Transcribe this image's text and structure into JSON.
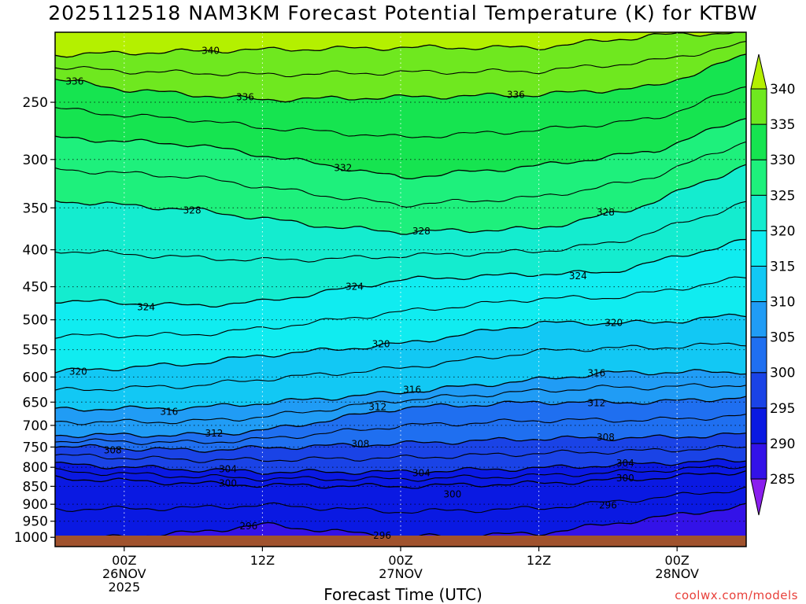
{
  "title": "2025112518 NAM3KM Forecast Potential Temperature (K) for KTBW",
  "x_axis_label": "Forecast Time (UTC)",
  "credit": "coolwx.com/models",
  "chart_data": {
    "type": "heatmap",
    "title": "2025112518 NAM3KM Forecast Potential Temperature (K) for KTBW",
    "xlabel": "Forecast Time (UTC)",
    "ylabel": "",
    "y_scale": "log-pressure (inverted)",
    "y_ticks": [
      250,
      300,
      350,
      400,
      450,
      500,
      550,
      600,
      650,
      700,
      750,
      800,
      850,
      900,
      950,
      1000
    ],
    "ylim": [
      1030,
      200
    ],
    "x_range_hours": [
      -6,
      54
    ],
    "x_ticks": [
      {
        "hour": 0,
        "lines": [
          "00Z",
          "26NOV",
          "2025"
        ]
      },
      {
        "hour": 12,
        "lines": [
          "12Z"
        ]
      },
      {
        "hour": 24,
        "lines": [
          "00Z",
          "27NOV"
        ]
      },
      {
        "hour": 36,
        "lines": [
          "12Z"
        ]
      },
      {
        "hour": 48,
        "lines": [
          "00Z",
          "28NOV"
        ]
      }
    ],
    "grid": true,
    "colorbar": {
      "levels": [
        285,
        290,
        295,
        300,
        305,
        310,
        315,
        320,
        325,
        330,
        335,
        340
      ],
      "colors": [
        "#8a1eee",
        "#3312e8",
        "#0a19e2",
        "#1a43e6",
        "#1f6ff0",
        "#209cf5",
        "#12c8f4",
        "#10ecf0",
        "#14eccf",
        "#1ef07c",
        "#16e450",
        "#6fe81f",
        "#b4f000"
      ],
      "extend": "both"
    },
    "contour_levels_labeled": [
      296,
      300,
      304,
      308,
      312,
      316,
      320,
      324,
      328,
      332,
      336,
      340
    ],
    "series": [
      {
        "name": "340",
        "x": [
          -6,
          8,
          24,
          36,
          46,
          54
        ],
        "pressure": [
          215,
          212,
          210,
          210,
          202,
          200
        ]
      },
      {
        "name": "336",
        "x": [
          -6,
          0,
          12,
          24,
          36,
          46,
          54
        ],
        "pressure": [
          232,
          240,
          248,
          246,
          244,
          238,
          215
        ]
      },
      {
        "name": "332",
        "x": [
          -6,
          6,
          18,
          24,
          36,
          46,
          54
        ],
        "pressure": [
          280,
          286,
          306,
          318,
          306,
          292,
          262
        ]
      },
      {
        "name": "328",
        "x": [
          -6,
          6,
          18,
          24,
          36,
          44,
          54
        ],
        "pressure": [
          342,
          352,
          372,
          378,
          374,
          352,
          305
        ]
      },
      {
        "name": "324",
        "x": [
          -6,
          6,
          12,
          24,
          36,
          42,
          54
        ],
        "pressure": [
          470,
          478,
          472,
          440,
          432,
          430,
          388
        ]
      },
      {
        "name": "320",
        "x": [
          -6,
          6,
          12,
          24,
          36,
          46,
          54
        ],
        "pressure": [
          590,
          575,
          560,
          540,
          505,
          505,
          492
        ]
      },
      {
        "name": "316",
        "x": [
          -6,
          6,
          12,
          24,
          36,
          42,
          54
        ],
        "pressure": [
          665,
          662,
          652,
          630,
          605,
          592,
          590
        ]
      },
      {
        "name": "312",
        "x": [
          -6,
          6,
          12,
          24,
          36,
          46,
          54
        ],
        "pressure": [
          722,
          722,
          712,
          662,
          650,
          650,
          640
        ]
      },
      {
        "name": "308",
        "x": [
          -6,
          6,
          12,
          24,
          36,
          46,
          54
        ],
        "pressure": [
          748,
          758,
          752,
          742,
          730,
          728,
          720
        ]
      },
      {
        "name": "304",
        "x": [
          -6,
          6,
          12,
          24,
          36,
          46,
          54
        ],
        "pressure": [
          792,
          806,
          812,
          812,
          802,
          790,
          782
        ]
      },
      {
        "name": "300",
        "x": [
          -6,
          6,
          12,
          24,
          36,
          46,
          54
        ],
        "pressure": [
          828,
          842,
          847,
          850,
          842,
          828,
          810
        ]
      },
      {
        "name": "296",
        "x": [
          -6,
          6,
          12,
          24,
          36,
          46,
          54
        ],
        "pressure": [
          1010,
          985,
          960,
          1000,
          988,
          940,
          905
        ]
      }
    ],
    "contour_labels": [
      {
        "text": "340",
        "x": 7.5,
        "p": 212
      },
      {
        "text": "336",
        "x": -4.3,
        "p": 234
      },
      {
        "text": "336",
        "x": 10.5,
        "p": 246
      },
      {
        "text": "336",
        "x": 34.0,
        "p": 244
      },
      {
        "text": "332",
        "x": 19.0,
        "p": 308
      },
      {
        "text": "328",
        "x": 5.9,
        "p": 353
      },
      {
        "text": "328",
        "x": 25.8,
        "p": 377
      },
      {
        "text": "328",
        "x": 41.8,
        "p": 355
      },
      {
        "text": "324",
        "x": 1.9,
        "p": 480
      },
      {
        "text": "324",
        "x": 20.0,
        "p": 450
      },
      {
        "text": "324",
        "x": 39.4,
        "p": 435
      },
      {
        "text": "320",
        "x": -4.0,
        "p": 590
      },
      {
        "text": "320",
        "x": 22.3,
        "p": 540
      },
      {
        "text": "320",
        "x": 42.5,
        "p": 505
      },
      {
        "text": "316",
        "x": 3.9,
        "p": 670
      },
      {
        "text": "316",
        "x": 25.0,
        "p": 625
      },
      {
        "text": "316",
        "x": 41.0,
        "p": 593
      },
      {
        "text": "312",
        "x": 7.8,
        "p": 718
      },
      {
        "text": "312",
        "x": 22.0,
        "p": 660
      },
      {
        "text": "312",
        "x": 41.0,
        "p": 652
      },
      {
        "text": "308",
        "x": -1.0,
        "p": 758
      },
      {
        "text": "308",
        "x": 20.5,
        "p": 743
      },
      {
        "text": "308",
        "x": 41.8,
        "p": 727
      },
      {
        "text": "304",
        "x": 9.0,
        "p": 805
      },
      {
        "text": "304",
        "x": 25.8,
        "p": 815
      },
      {
        "text": "304",
        "x": 43.5,
        "p": 790
      },
      {
        "text": "300",
        "x": 9.0,
        "p": 842
      },
      {
        "text": "300",
        "x": 28.5,
        "p": 872
      },
      {
        "text": "300",
        "x": 43.5,
        "p": 828
      },
      {
        "text": "296",
        "x": 10.8,
        "p": 965
      },
      {
        "text": "296",
        "x": 22.4,
        "p": 995
      },
      {
        "text": "296",
        "x": 42.0,
        "p": 903
      }
    ]
  }
}
